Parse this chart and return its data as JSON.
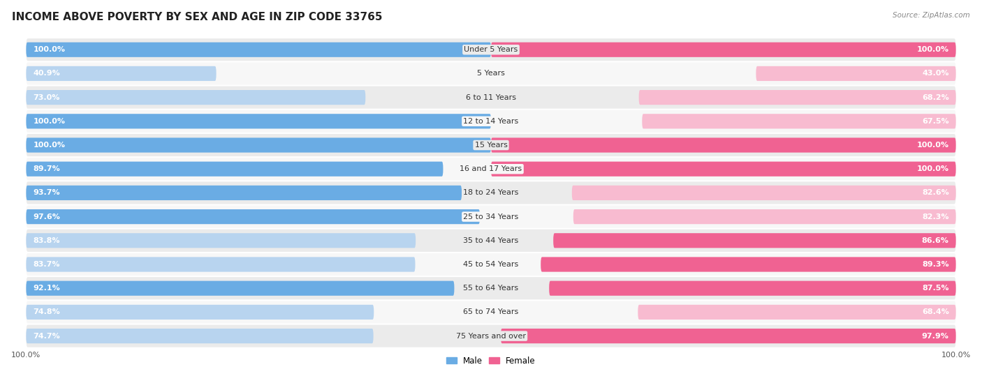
{
  "title": "INCOME ABOVE POVERTY BY SEX AND AGE IN ZIP CODE 33765",
  "source": "Source: ZipAtlas.com",
  "categories": [
    "Under 5 Years",
    "5 Years",
    "6 to 11 Years",
    "12 to 14 Years",
    "15 Years",
    "16 and 17 Years",
    "18 to 24 Years",
    "25 to 34 Years",
    "35 to 44 Years",
    "45 to 54 Years",
    "55 to 64 Years",
    "65 to 74 Years",
    "75 Years and over"
  ],
  "male_values": [
    100.0,
    40.9,
    73.0,
    100.0,
    100.0,
    89.7,
    93.7,
    97.6,
    83.8,
    83.7,
    92.1,
    74.8,
    74.7
  ],
  "female_values": [
    100.0,
    43.0,
    68.2,
    67.5,
    100.0,
    100.0,
    82.6,
    82.3,
    86.6,
    89.3,
    87.5,
    68.4,
    97.9
  ],
  "male_color_full": "#6aace4",
  "male_color_light": "#b8d4ef",
  "female_color_full": "#f06292",
  "female_color_light": "#f8bbd0",
  "row_bg_even": "#ebebeb",
  "row_bg_odd": "#f7f7f7",
  "title_fontsize": 11,
  "label_fontsize": 8.0,
  "source_fontsize": 7.5,
  "legend_fontsize": 8.5,
  "max_value": 100.0,
  "full_threshold": 85.0
}
